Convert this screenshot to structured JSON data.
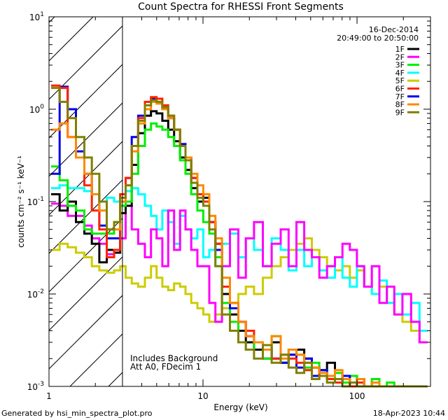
{
  "chart_data": {
    "type": "line",
    "title": "Count Spectra for RHESSI Front Segments",
    "xlabel": "Energy (keV)",
    "ylabel": "counts cm⁻² s⁻¹ keV⁻¹",
    "x_scale": "log",
    "y_scale": "log",
    "xlim": [
      1,
      300
    ],
    "ylim": [
      0.001,
      10
    ],
    "x_ticks": [
      {
        "value": 1,
        "label": "1"
      },
      {
        "value": 10,
        "label": "10"
      },
      {
        "value": 100,
        "label": "100"
      }
    ],
    "y_ticks": [
      {
        "value": 0.001,
        "base": "10",
        "exp": "-3"
      },
      {
        "value": 0.01,
        "base": "10",
        "exp": "-2"
      },
      {
        "value": 0.1,
        "base": "10",
        "exp": "-1"
      },
      {
        "value": 1,
        "base": "10",
        "exp": "0"
      },
      {
        "value": 10,
        "base": "10",
        "exp": "1"
      }
    ],
    "legend_position": "top-right",
    "date": "16-Dec-2014",
    "time_range": "20:49:00 to 20:50:00",
    "annotations": [
      "Includes Background",
      "Att A0, FDecim 1"
    ],
    "excluded_region": [
      1,
      3
    ],
    "x": [
      1.1,
      1.25,
      1.4,
      1.6,
      1.8,
      2.0,
      2.25,
      2.5,
      2.8,
      3.0,
      3.3,
      3.6,
      4.0,
      4.4,
      4.8,
      5.2,
      5.7,
      6.2,
      6.8,
      7.4,
      8.0,
      8.8,
      9.6,
      10.5,
      11.5,
      12.6,
      14,
      16,
      18,
      20,
      23,
      26,
      30,
      34,
      38,
      43,
      48,
      54,
      60,
      68,
      76,
      85,
      95,
      105,
      118,
      132,
      148,
      165,
      185,
      210,
      240,
      270
    ],
    "series": [
      {
        "name": "1F",
        "color": "#000000",
        "values": [
          0.12,
          0.08,
          0.1,
          0.06,
          0.045,
          0.035,
          0.022,
          0.03,
          0.028,
          0.075,
          0.09,
          0.25,
          0.55,
          0.85,
          0.95,
          0.9,
          0.75,
          0.6,
          0.45,
          0.3,
          0.22,
          0.14,
          0.1,
          0.11,
          0.06,
          0.035,
          0.01,
          0.006,
          0.004,
          0.003,
          0.0025,
          0.002,
          0.003,
          0.0018,
          0.0022,
          0.0025,
          0.002,
          0.0016,
          0.0015,
          0.0018,
          0.0012,
          0.0011,
          0.0013,
          0.0012,
          0.001,
          0.0011,
          0.001,
          0.001,
          0.001,
          0.001,
          0.001,
          0.001
        ]
      },
      {
        "name": "2F",
        "color": "#ff00ff",
        "values": [
          0.095,
          0.09,
          0.07,
          0.07,
          0.055,
          0.04,
          0.035,
          0.027,
          0.03,
          0.04,
          0.09,
          0.05,
          0.035,
          0.025,
          0.05,
          0.04,
          0.02,
          0.08,
          0.03,
          0.08,
          0.05,
          0.03,
          0.02,
          0.02,
          0.008,
          0.005,
          0.02,
          0.05,
          0.015,
          0.04,
          0.06,
          0.02,
          0.035,
          0.05,
          0.02,
          0.06,
          0.03,
          0.025,
          0.015,
          0.02,
          0.025,
          0.035,
          0.03,
          0.02,
          0.012,
          0.02,
          0.008,
          0.012,
          0.006,
          0.01,
          0.005,
          0.003
        ]
      },
      {
        "name": "3F",
        "color": "#00ee00",
        "values": [
          0.24,
          0.17,
          0.09,
          0.08,
          0.05,
          0.045,
          0.045,
          0.045,
          0.06,
          0.09,
          0.1,
          0.2,
          0.4,
          0.6,
          0.7,
          0.65,
          0.6,
          0.5,
          0.4,
          0.28,
          0.2,
          0.12,
          0.08,
          0.06,
          0.045,
          0.025,
          0.008,
          0.005,
          0.003,
          0.0025,
          0.003,
          0.002,
          0.0035,
          0.0018,
          0.0025,
          0.0022,
          0.0016,
          0.0018,
          0.0015,
          0.0012,
          0.0014,
          0.0011,
          0.0013,
          0.0011,
          0.001,
          0.0012,
          0.001,
          0.0011,
          0.001,
          0.001,
          0.001,
          0.001
        ]
      },
      {
        "name": "4F",
        "color": "#00ffff",
        "values": [
          0.14,
          0.15,
          0.14,
          0.14,
          0.13,
          0.12,
          0.1,
          0.11,
          0.1,
          0.11,
          0.13,
          0.14,
          0.12,
          0.09,
          0.07,
          0.05,
          0.08,
          0.06,
          0.035,
          0.07,
          0.05,
          0.04,
          0.05,
          0.025,
          0.03,
          0.02,
          0.035,
          0.045,
          0.025,
          0.04,
          0.03,
          0.02,
          0.04,
          0.03,
          0.018,
          0.03,
          0.02,
          0.025,
          0.018,
          0.015,
          0.025,
          0.015,
          0.012,
          0.02,
          0.012,
          0.01,
          0.014,
          0.008,
          0.01,
          0.006,
          0.008,
          0.004
        ]
      },
      {
        "name": "5F",
        "color": "#cccc00",
        "values": [
          0.03,
          0.035,
          0.032,
          0.028,
          0.025,
          0.02,
          0.018,
          0.017,
          0.018,
          0.02,
          0.015,
          0.013,
          0.012,
          0.015,
          0.02,
          0.015,
          0.012,
          0.011,
          0.013,
          0.012,
          0.01,
          0.008,
          0.007,
          0.006,
          0.005,
          0.006,
          0.007,
          0.008,
          0.01,
          0.012,
          0.01,
          0.015,
          0.02,
          0.025,
          0.03,
          0.035,
          0.04,
          0.03,
          0.025,
          0.02,
          0.018,
          0.02,
          0.015,
          0.018,
          0.012,
          0.01,
          0.012,
          0.008,
          0.006,
          0.005,
          0.004,
          0.003
        ]
      },
      {
        "name": "6F",
        "color": "#ff2200",
        "values": [
          1.8,
          1.7,
          0.5,
          0.3,
          0.15,
          0.08,
          0.05,
          0.025,
          0.03,
          0.12,
          0.18,
          0.4,
          0.8,
          1.2,
          1.35,
          1.3,
          1.1,
          0.85,
          0.6,
          0.4,
          0.3,
          0.18,
          0.12,
          0.1,
          0.06,
          0.035,
          0.012,
          0.008,
          0.005,
          0.004,
          0.003,
          0.0025,
          0.002,
          0.0022,
          0.002,
          0.0018,
          0.0015,
          0.0016,
          0.0013,
          0.0012,
          0.0011,
          0.0012,
          0.001,
          0.0011,
          0.001,
          0.001,
          0.001,
          0.001,
          0.001,
          0.001,
          0.001,
          0.001
        ]
      },
      {
        "name": "7F",
        "color": "#0000ee",
        "values": [
          0.2,
          1.75,
          1.0,
          0.35,
          0.2,
          0.12,
          0.055,
          0.04,
          0.04,
          0.11,
          0.18,
          0.5,
          0.85,
          1.2,
          1.3,
          1.2,
          1.0,
          0.8,
          0.6,
          0.42,
          0.3,
          0.18,
          0.12,
          0.1,
          0.06,
          0.03,
          0.012,
          0.007,
          0.005,
          0.0035,
          0.003,
          0.0025,
          0.002,
          0.0018,
          0.0022,
          0.0016,
          0.002,
          0.0013,
          0.0015,
          0.0012,
          0.0011,
          0.0013,
          0.001,
          0.0011,
          0.001,
          0.001,
          0.001,
          0.001,
          0.001,
          0.001,
          0.001,
          0.001
        ]
      },
      {
        "name": "8F",
        "color": "#ff8800",
        "values": [
          0.6,
          0.7,
          0.5,
          0.3,
          0.2,
          0.12,
          0.08,
          0.05,
          0.05,
          0.1,
          0.15,
          0.35,
          0.7,
          1.0,
          1.2,
          1.15,
          1.0,
          0.8,
          0.6,
          0.4,
          0.3,
          0.2,
          0.15,
          0.12,
          0.07,
          0.04,
          0.015,
          0.008,
          0.005,
          0.0035,
          0.003,
          0.0025,
          0.0035,
          0.002,
          0.0025,
          0.0022,
          0.0018,
          0.0016,
          0.0014,
          0.0013,
          0.0015,
          0.0012,
          0.0011,
          0.0012,
          0.001,
          0.0011,
          0.001,
          0.001,
          0.001,
          0.001,
          0.001,
          0.001
        ]
      },
      {
        "name": "9F",
        "color": "#808000",
        "values": [
          1.7,
          1.2,
          0.8,
          0.5,
          0.3,
          0.2,
          0.1,
          0.05,
          0.06,
          0.11,
          0.15,
          0.4,
          0.75,
          1.1,
          1.25,
          1.2,
          1.05,
          0.85,
          0.6,
          0.4,
          0.28,
          0.16,
          0.11,
          0.09,
          0.05,
          0.02,
          0.006,
          0.004,
          0.003,
          0.0025,
          0.002,
          0.0028,
          0.0018,
          0.0022,
          0.0016,
          0.0014,
          0.0018,
          0.0012,
          0.0013,
          0.0011,
          0.0012,
          0.001,
          0.0011,
          0.001,
          0.001,
          0.001,
          0.001,
          0.001,
          0.001,
          0.001,
          0.001,
          0.001
        ]
      }
    ]
  },
  "footer": {
    "generated_by": "Generated by hsi_min_spectra_plot.pro",
    "timestamp": "18-Apr-2023 10:44"
  }
}
